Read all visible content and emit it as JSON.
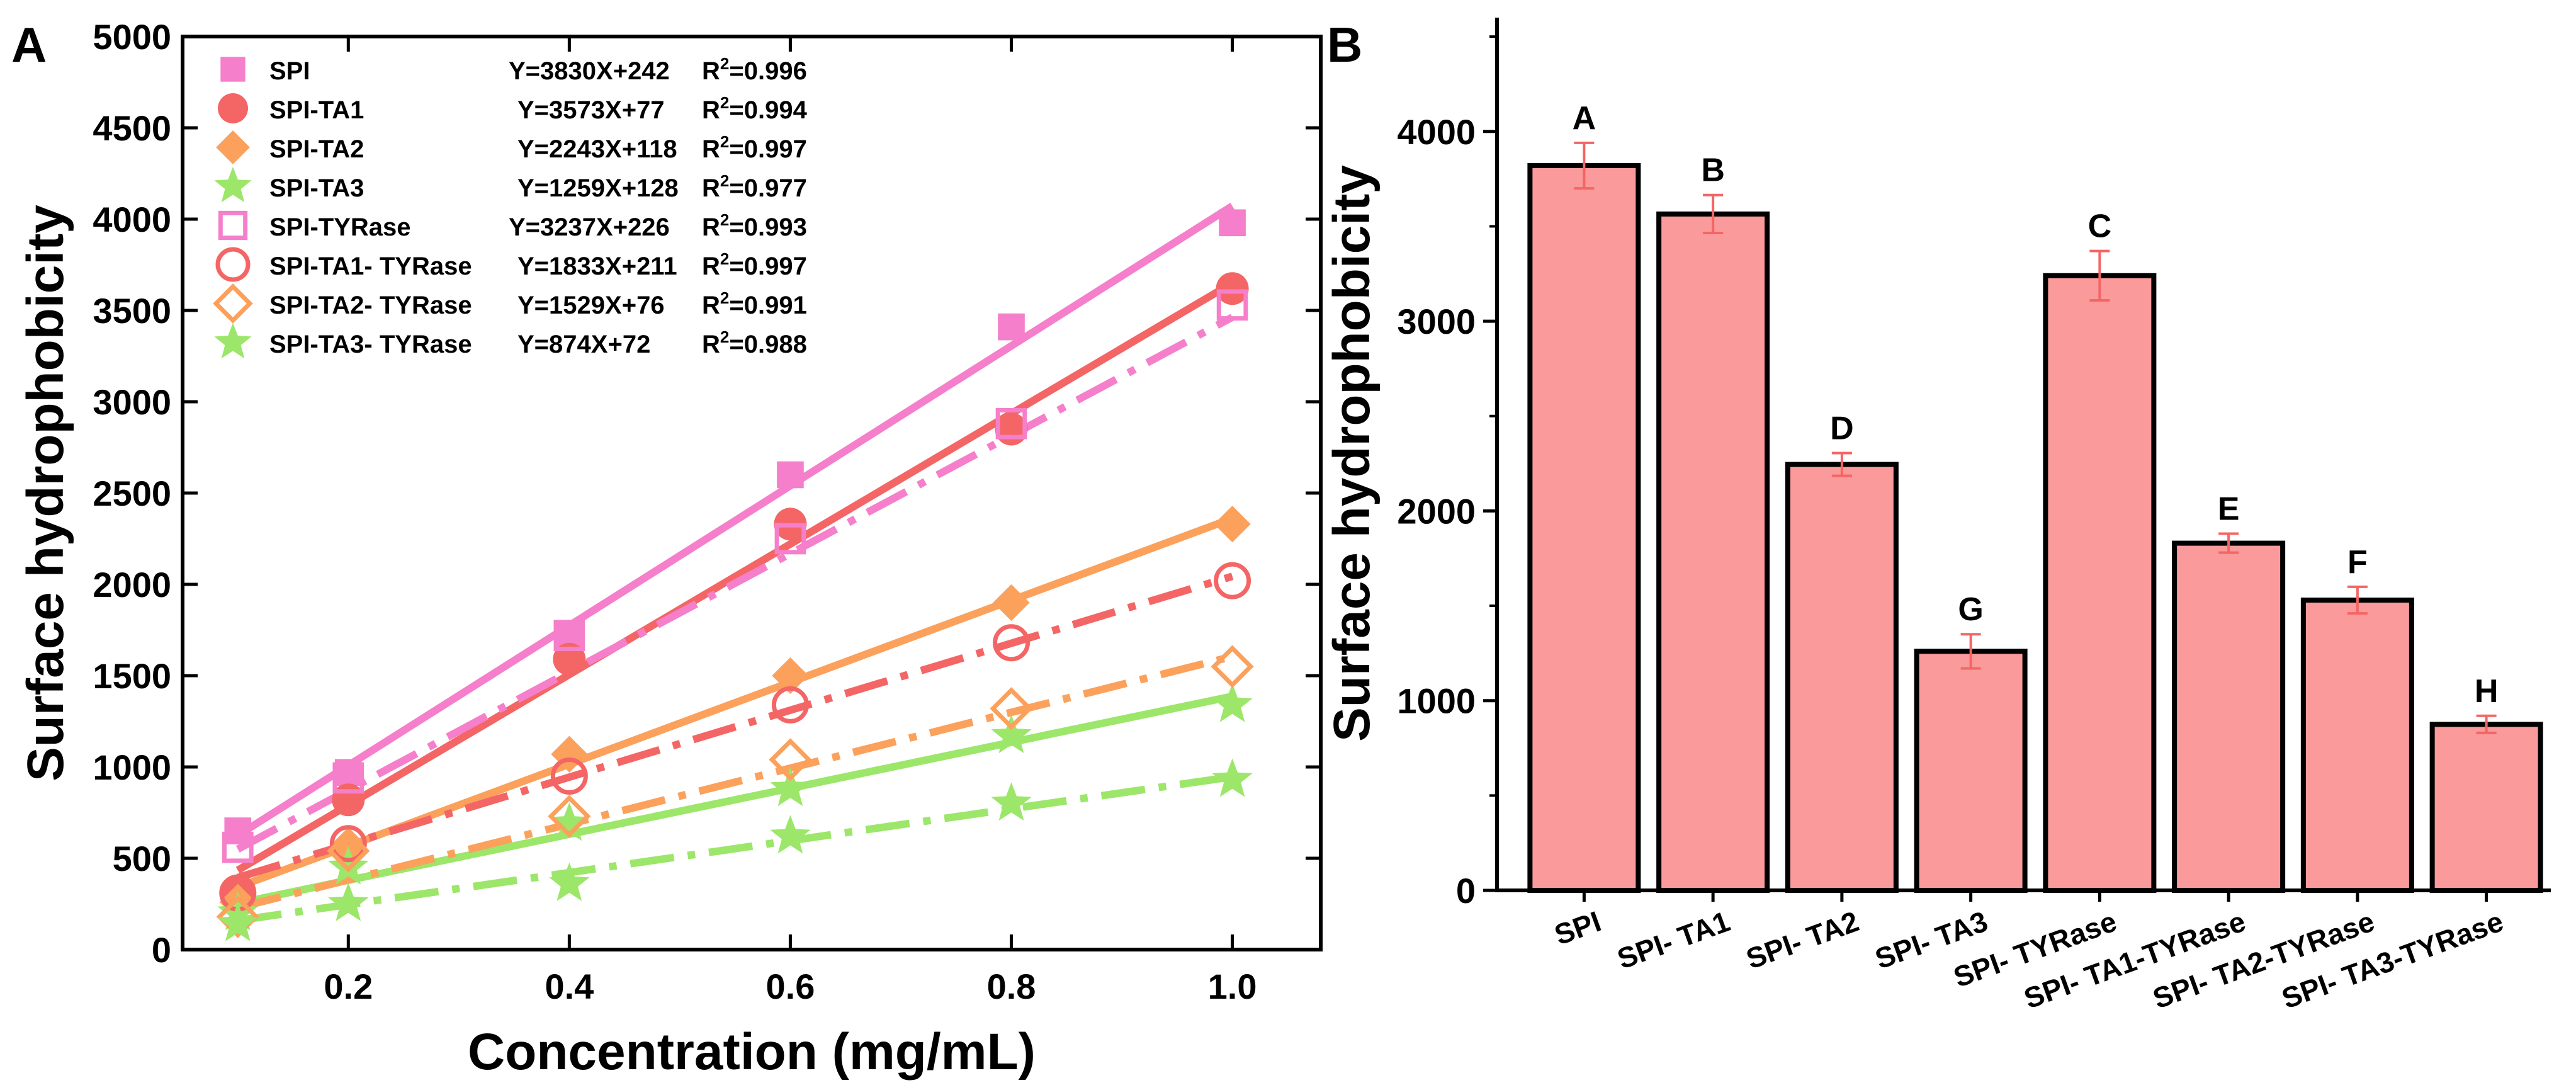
{
  "chart_data": [
    {
      "panel_label": "A",
      "type": "scatter",
      "title": "",
      "xlabel": "Concentration (mg/mL)",
      "ylabel": "Surface hydrophobicity",
      "xlim": [
        0.05,
        1.08
      ],
      "ylim": [
        0,
        5000
      ],
      "x_ticks": [
        "0.2",
        "0.4",
        "0.6",
        "0.8",
        "1.0"
      ],
      "y_ticks": [
        "0",
        "500",
        "1000",
        "1500",
        "2000",
        "2500",
        "3000",
        "3500",
        "4000",
        "4500",
        "5000"
      ],
      "x": [
        0.1,
        0.2,
        0.4,
        0.6,
        0.8,
        1.0
      ],
      "fit_x": [
        0.1,
        1.0
      ],
      "series": [
        {
          "name": "SPI",
          "equation": "Y=3830X+242",
          "r2_label": "R",
          "r2_sup": "2",
          "r2_value": "=0.996",
          "color": "#f57fca",
          "marker": "square",
          "filled": true,
          "line": "solid",
          "slope": 3830,
          "intercept": 242,
          "values": [
            650,
            970,
            1730,
            2600,
            3410,
            3980
          ]
        },
        {
          "name": "SPI-TA1",
          "equation": "Y=3573X+77",
          "r2_label": "R",
          "r2_sup": "2",
          "r2_value": "=0.994",
          "color": "#f46565",
          "marker": "circle",
          "filled": true,
          "line": "solid",
          "slope": 3573,
          "intercept": 77,
          "values": [
            320,
            820,
            1590,
            2330,
            2850,
            3620
          ]
        },
        {
          "name": "SPI-TA2",
          "equation": "Y=2243X+118",
          "r2_label": "R",
          "r2_sup": "2",
          "r2_value": "=0.997",
          "color": "#fba15c",
          "marker": "diamond",
          "filled": true,
          "line": "solid",
          "slope": 2243,
          "intercept": 118,
          "values": [
            260,
            570,
            1070,
            1500,
            1900,
            2330
          ]
        },
        {
          "name": "SPI-TA3",
          "equation": "Y=1259X+128",
          "r2_label": "R",
          "r2_sup": "2",
          "r2_value": "=0.977",
          "color": "#9ce66a",
          "marker": "star",
          "filled": true,
          "line": "solid",
          "slope": 1259,
          "intercept": 128,
          "values": [
            200,
            450,
            690,
            880,
            1170,
            1340
          ]
        },
        {
          "name": "SPI-TYRase",
          "equation": "Y=3237X+226",
          "r2_label": "R",
          "r2_sup": "2",
          "r2_value": "=0.993",
          "color": "#f57fca",
          "marker": "square",
          "filled": false,
          "line": "dashdot",
          "slope": 3237,
          "intercept": 226,
          "values": [
            560,
            940,
            1720,
            2250,
            2880,
            3530
          ]
        },
        {
          "name": "SPI-TA1- TYRase",
          "equation": "Y=1833X+211",
          "r2_label": "R",
          "r2_sup": "2",
          "r2_value": "=0.997",
          "color": "#f46565",
          "marker": "circle",
          "filled": false,
          "line": "dashdot",
          "slope": 1833,
          "intercept": 211,
          "values": [
            310,
            580,
            950,
            1340,
            1680,
            2020
          ]
        },
        {
          "name": "SPI-TA2- TYRase",
          "equation": "Y=1529X+76",
          "r2_label": "R",
          "r2_sup": "2",
          "r2_value": "=0.991",
          "color": "#fba15c",
          "marker": "diamond",
          "filled": false,
          "line": "dashdot",
          "slope": 1529,
          "intercept": 76,
          "values": [
            180,
            540,
            730,
            1040,
            1320,
            1550
          ]
        },
        {
          "name": "SPI-TA3- TYRase",
          "equation": "Y=874X+72",
          "r2_label": "R",
          "r2_sup": "2",
          "r2_value": "=0.988",
          "color": "#9ce66a",
          "marker": "star",
          "filled": true,
          "line": "dashdot",
          "slope": 874,
          "intercept": 72,
          "values": [
            140,
            250,
            360,
            620,
            800,
            930
          ]
        }
      ],
      "legend_position": "top-left"
    },
    {
      "panel_label": "B",
      "type": "bar",
      "title": "",
      "xlabel": "",
      "ylabel": "Surface hydrophobicity",
      "ylim": [
        0,
        4600
      ],
      "y_ticks": [
        "0",
        "1000",
        "2000",
        "3000",
        "4000"
      ],
      "bar_color": "#fa9a9a",
      "error_color": "#f46565",
      "categories": [
        "SPI",
        "SPI- TA1",
        "SPI- TA2",
        "SPI- TA3",
        "SPI- TYRase",
        "SPI- TA1-TYRase",
        "SPI- TA2-TYRase",
        "SPI- TA3-TYRase"
      ],
      "values": [
        3820,
        3565,
        2245,
        1260,
        3240,
        1830,
        1530,
        875
      ],
      "errors": [
        120,
        100,
        60,
        90,
        130,
        50,
        70,
        45
      ],
      "letters": [
        "A",
        "B",
        "D",
        "G",
        "C",
        "E",
        "F",
        "H"
      ]
    }
  ]
}
